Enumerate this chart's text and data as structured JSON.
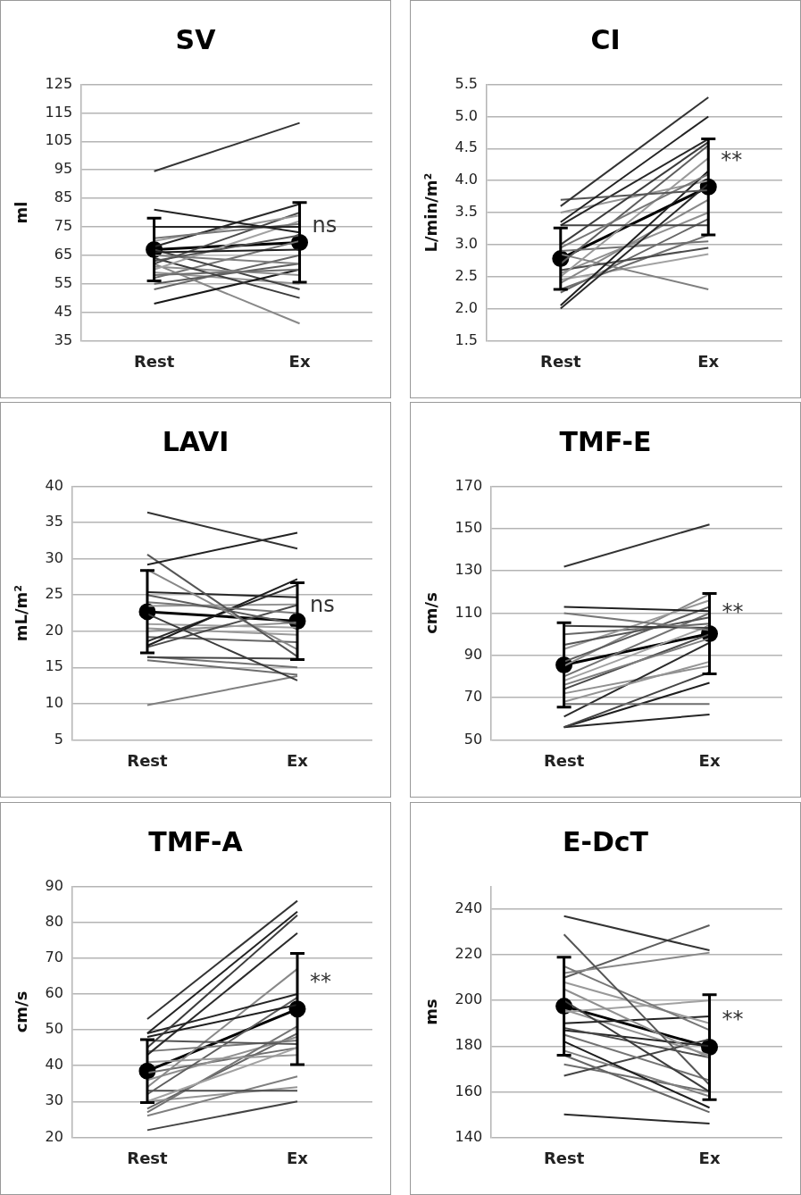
{
  "chart_data": [
    {
      "type": "line",
      "title": "SV",
      "ylabel": "ml",
      "categories": [
        "Rest",
        "Ex"
      ],
      "ylim": [
        35,
        125
      ],
      "yticks": [
        35,
        45,
        55,
        65,
        75,
        85,
        95,
        105,
        115,
        125
      ],
      "grid": "y",
      "marker": "none",
      "annotations": [
        {
          "text": "ns",
          "x": "Ex",
          "y": 75
        }
      ],
      "series": [
        {
          "color": "#333333",
          "values": [
            94.5,
            111.5
          ]
        },
        {
          "color": "#222222",
          "values": [
            81,
            73
          ]
        },
        {
          "color": "#262626",
          "values": [
            75,
            75
          ]
        },
        {
          "color": "#777777",
          "values": [
            71,
            76
          ]
        },
        {
          "color": "#2a2a2a",
          "values": [
            68,
            83
          ]
        },
        {
          "color": "#999999",
          "values": [
            70,
            79
          ]
        },
        {
          "color": "#1e1e1e",
          "values": [
            66,
            67
          ]
        },
        {
          "color": "#555555",
          "values": [
            63,
            72
          ]
        },
        {
          "color": "#7f7f7f",
          "values": [
            65,
            62
          ]
        },
        {
          "color": "#4c4c4c",
          "values": [
            62,
            80
          ]
        },
        {
          "color": "#a1a1a1",
          "values": [
            60,
            77
          ]
        },
        {
          "color": "#6e6e6e",
          "values": [
            58,
            60
          ]
        },
        {
          "color": "#3b3b3b",
          "values": [
            64,
            50
          ]
        },
        {
          "color": "#909090",
          "values": [
            61,
            58
          ]
        },
        {
          "color": "#5d5d5d",
          "values": [
            55,
            62
          ]
        },
        {
          "color": "#181818",
          "values": [
            48,
            60
          ]
        },
        {
          "color": "#888888",
          "values": [
            62,
            41
          ]
        },
        {
          "color": "#444444",
          "values": [
            67,
            53
          ]
        },
        {
          "color": "#959595",
          "values": [
            59,
            55
          ]
        },
        {
          "color": "#737373",
          "values": [
            57,
            70
          ]
        },
        {
          "color": "#666666",
          "values": [
            53,
            65
          ]
        },
        {
          "color": "#000000",
          "values": [
            67,
            69.5
          ],
          "errors": [
            11,
            14
          ],
          "marker": "circle"
        }
      ]
    },
    {
      "type": "line",
      "title": "CI",
      "ylabel": "L/min/m²",
      "categories": [
        "Rest",
        "Ex"
      ],
      "ylim": [
        1.5,
        5.5
      ],
      "yticks": [
        {
          "value": 1.5,
          "label": "1.5"
        },
        {
          "value": 2,
          "label": "2.0"
        },
        {
          "value": 2.5,
          "label": "2.5"
        },
        {
          "value": 3,
          "label": "3.0"
        },
        {
          "value": 3.5,
          "label": "3.5"
        },
        {
          "value": 4,
          "label": "4.0"
        },
        {
          "value": 4.5,
          "label": "4.5"
        },
        {
          "value": 5,
          "label": "5.0"
        },
        {
          "value": 5.5,
          "label": "5.5"
        }
      ],
      "grid": "y",
      "marker": "none",
      "annotations": [
        {
          "text": "**",
          "x": "Ex",
          "y": 4.3
        }
      ],
      "series": [
        {
          "color": "#333333",
          "values": [
            3.6,
            5.3
          ]
        },
        {
          "color": "#222222",
          "values": [
            3.35,
            5.0
          ]
        },
        {
          "color": "#555555",
          "values": [
            3.7,
            3.85
          ]
        },
        {
          "color": "#262626",
          "values": [
            3.3,
            4.65
          ]
        },
        {
          "color": "#3b3b3b",
          "values": [
            3.0,
            4.6
          ]
        },
        {
          "color": "#777777",
          "values": [
            2.95,
            4.1
          ]
        },
        {
          "color": "#5d5d5d",
          "values": [
            2.7,
            4.55
          ]
        },
        {
          "color": "#1e1e1e",
          "values": [
            2.05,
            4.15
          ]
        },
        {
          "color": "#2a2a2a",
          "values": [
            2.0,
            3.95
          ]
        },
        {
          "color": "#444444",
          "values": [
            3.3,
            3.3
          ]
        },
        {
          "color": "#999999",
          "values": [
            2.5,
            4.35
          ]
        },
        {
          "color": "#888888",
          "values": [
            2.4,
            3.7
          ]
        },
        {
          "color": "#4c4c4c",
          "values": [
            2.6,
            2.95
          ]
        },
        {
          "color": "#7f7f7f",
          "values": [
            2.85,
            2.3
          ]
        },
        {
          "color": "#6e6e6e",
          "values": [
            2.3,
            3.15
          ]
        },
        {
          "color": "#a1a1a1",
          "values": [
            2.45,
            2.85
          ]
        },
        {
          "color": "#909090",
          "values": [
            2.55,
            3.5
          ]
        },
        {
          "color": "#737373",
          "values": [
            2.9,
            3.05
          ]
        },
        {
          "color": "#959595",
          "values": [
            3.5,
            4.0
          ]
        },
        {
          "color": "#666666",
          "values": [
            2.25,
            3.4
          ]
        },
        {
          "color": "#000000",
          "values": [
            2.78,
            3.9
          ],
          "errors": [
            0.48,
            0.75
          ],
          "marker": "circle"
        }
      ]
    },
    {
      "type": "line",
      "title": "LAVI",
      "ylabel": "mL/m²",
      "categories": [
        "Rest",
        "Ex"
      ],
      "ylim": [
        5,
        40
      ],
      "yticks": [
        5,
        10,
        15,
        20,
        25,
        30,
        35,
        40
      ],
      "grid": "y",
      "marker": "none",
      "annotations": [
        {
          "text": "ns",
          "x": "Ex",
          "y": 23.5
        }
      ],
      "series": [
        {
          "color": "#333333",
          "values": [
            36.4,
            31.4
          ]
        },
        {
          "color": "#222222",
          "values": [
            29.2,
            33.6
          ]
        },
        {
          "color": "#555555",
          "values": [
            30.6,
            16.5
          ]
        },
        {
          "color": "#888888",
          "values": [
            28.5,
            17.5
          ]
        },
        {
          "color": "#262626",
          "values": [
            25.4,
            24.7
          ]
        },
        {
          "color": "#5d5d5d",
          "values": [
            25,
            21
          ]
        },
        {
          "color": "#777777",
          "values": [
            24,
            22.5
          ]
        },
        {
          "color": "#3b3b3b",
          "values": [
            22.4,
            13.2
          ]
        },
        {
          "color": "#1e1e1e",
          "values": [
            18,
            27.2
          ]
        },
        {
          "color": "#2a2a2a",
          "values": [
            18.6,
            26.4
          ]
        },
        {
          "color": "#4c4c4c",
          "values": [
            17.8,
            23.6
          ]
        },
        {
          "color": "#999999",
          "values": [
            20.4,
            19.5
          ]
        },
        {
          "color": "#666666",
          "values": [
            19.2,
            18.5
          ]
        },
        {
          "color": "#a1a1a1",
          "values": [
            21,
            20.5
          ]
        },
        {
          "color": "#444444",
          "values": [
            16.4,
            16.2
          ]
        },
        {
          "color": "#6e6e6e",
          "values": [
            16,
            14
          ]
        },
        {
          "color": "#737373",
          "values": [
            16.5,
            15
          ]
        },
        {
          "color": "#7f7f7f",
          "values": [
            9.8,
            13.8
          ]
        },
        {
          "color": "#959595",
          "values": [
            23.5,
            23.7
          ]
        },
        {
          "color": "#909090",
          "values": [
            20,
            21.2
          ]
        },
        {
          "color": "#000000",
          "values": [
            22.7,
            21.4
          ],
          "errors": [
            5.7,
            5.3
          ],
          "marker": "circle"
        }
      ]
    },
    {
      "type": "line",
      "title": "TMF-E",
      "ylabel": "cm/s",
      "categories": [
        "Rest",
        "Ex"
      ],
      "ylim": [
        50,
        170
      ],
      "yticks": [
        50,
        70,
        90,
        110,
        130,
        150,
        170
      ],
      "grid": "y",
      "marker": "none",
      "annotations": [
        {
          "text": "**",
          "x": "Ex",
          "y": 110
        }
      ],
      "series": [
        {
          "color": "#333333",
          "values": [
            132,
            152
          ]
        },
        {
          "color": "#222222",
          "values": [
            113,
            111
          ]
        },
        {
          "color": "#777777",
          "values": [
            110,
            102
          ]
        },
        {
          "color": "#3b3b3b",
          "values": [
            104,
            103
          ]
        },
        {
          "color": "#555555",
          "values": [
            95,
            108
          ]
        },
        {
          "color": "#999999",
          "values": [
            93,
            116
          ]
        },
        {
          "color": "#5d5d5d",
          "values": [
            87,
            113
          ]
        },
        {
          "color": "#888888",
          "values": [
            85,
            119
          ]
        },
        {
          "color": "#737373",
          "values": [
            80,
            110
          ]
        },
        {
          "color": "#a1a1a1",
          "values": [
            78,
            104
          ]
        },
        {
          "color": "#7f7f7f",
          "values": [
            76,
            98
          ]
        },
        {
          "color": "#4c4c4c",
          "values": [
            74,
            100
          ]
        },
        {
          "color": "#959595",
          "values": [
            68,
            87
          ]
        },
        {
          "color": "#6e6e6e",
          "values": [
            67,
            67
          ]
        },
        {
          "color": "#2a2a2a",
          "values": [
            61,
            96
          ]
        },
        {
          "color": "#444444",
          "values": [
            56,
            82
          ]
        },
        {
          "color": "#1e1e1e",
          "values": [
            56,
            77
          ]
        },
        {
          "color": "#262626",
          "values": [
            56,
            62
          ]
        },
        {
          "color": "#909090",
          "values": [
            72,
            85
          ]
        },
        {
          "color": "#666666",
          "values": [
            100,
            105
          ]
        },
        {
          "color": "#000000",
          "values": [
            85.5,
            100.3
          ],
          "errors": [
            20,
            19
          ],
          "marker": "circle"
        }
      ]
    },
    {
      "type": "line",
      "title": "TMF-A",
      "ylabel": "cm/s",
      "categories": [
        "Rest",
        "Ex"
      ],
      "ylim": [
        20,
        90
      ],
      "yticks": [
        20,
        30,
        40,
        50,
        60,
        70,
        80,
        90
      ],
      "grid": "y",
      "marker": "none",
      "annotations": [
        {
          "text": "**",
          "x": "Ex",
          "y": 63
        }
      ],
      "series": [
        {
          "color": "#333333",
          "values": [
            53,
            86
          ]
        },
        {
          "color": "#222222",
          "values": [
            49,
            83
          ]
        },
        {
          "color": "#3b3b3b",
          "values": [
            45,
            82
          ]
        },
        {
          "color": "#1e1e1e",
          "values": [
            48,
            57
          ]
        },
        {
          "color": "#262626",
          "values": [
            49,
            60
          ]
        },
        {
          "color": "#2a2a2a",
          "values": [
            43,
            77
          ]
        },
        {
          "color": "#555555",
          "values": [
            47,
            46
          ]
        },
        {
          "color": "#777777",
          "values": [
            44,
            47
          ]
        },
        {
          "color": "#999999",
          "values": [
            41,
            43
          ]
        },
        {
          "color": "#888888",
          "values": [
            34,
            67
          ]
        },
        {
          "color": "#5d5d5d",
          "values": [
            32,
            59
          ]
        },
        {
          "color": "#a1a1a1",
          "values": [
            30,
            45
          ]
        },
        {
          "color": "#4c4c4c",
          "values": [
            33,
            33
          ]
        },
        {
          "color": "#737373",
          "values": [
            27,
            51
          ]
        },
        {
          "color": "#7f7f7f",
          "values": [
            26,
            37
          ]
        },
        {
          "color": "#959595",
          "values": [
            30,
            34
          ]
        },
        {
          "color": "#444444",
          "values": [
            22,
            30
          ]
        },
        {
          "color": "#909090",
          "values": [
            36,
            48
          ]
        },
        {
          "color": "#6e6e6e",
          "values": [
            38,
            45
          ]
        },
        {
          "color": "#666666",
          "values": [
            28,
            49
          ]
        },
        {
          "color": "#000000",
          "values": [
            38.5,
            55.8
          ],
          "errors": [
            8.8,
            15.5
          ],
          "marker": "circle"
        }
      ]
    },
    {
      "type": "line",
      "title": "E-DcT",
      "ylabel": "ms",
      "categories": [
        "Rest",
        "Ex"
      ],
      "ylim": [
        140,
        250
      ],
      "yticks": [
        140,
        160,
        180,
        200,
        220,
        240
      ],
      "grid": "y",
      "marker": "none",
      "annotations": [
        {
          "text": "**",
          "x": "Ex",
          "y": 191
        }
      ],
      "series": [
        {
          "color": "#333333",
          "values": [
            237,
            222
          ]
        },
        {
          "color": "#555555",
          "values": [
            229,
            163
          ]
        },
        {
          "color": "#777777",
          "values": [
            215,
            187
          ]
        },
        {
          "color": "#888888",
          "values": [
            212,
            221
          ]
        },
        {
          "color": "#5d5d5d",
          "values": [
            210,
            233
          ]
        },
        {
          "color": "#999999",
          "values": [
            208,
            190
          ]
        },
        {
          "color": "#909090",
          "values": [
            205,
            175
          ]
        },
        {
          "color": "#3b3b3b",
          "values": [
            200,
            160
          ]
        },
        {
          "color": "#a1a1a1",
          "values": [
            195,
            200
          ]
        },
        {
          "color": "#222222",
          "values": [
            190,
            193
          ]
        },
        {
          "color": "#4c4c4c",
          "values": [
            188,
            175
          ]
        },
        {
          "color": "#737373",
          "values": [
            185,
            165
          ]
        },
        {
          "color": "#1e1e1e",
          "values": [
            182,
            153
          ]
        },
        {
          "color": "#7f7f7f",
          "values": [
            178,
            158
          ]
        },
        {
          "color": "#666666",
          "values": [
            176,
            151
          ]
        },
        {
          "color": "#444444",
          "values": [
            167,
            183
          ]
        },
        {
          "color": "#2a2a2a",
          "values": [
            150,
            146
          ]
        },
        {
          "color": "#262626",
          "values": [
            187,
            180
          ]
        },
        {
          "color": "#959595",
          "values": [
            196,
            176
          ]
        },
        {
          "color": "#6e6e6e",
          "values": [
            172,
            160
          ]
        },
        {
          "color": "#000000",
          "values": [
            197.5,
            179.5
          ],
          "errors": [
            21.5,
            23
          ],
          "marker": "circle"
        }
      ]
    }
  ]
}
